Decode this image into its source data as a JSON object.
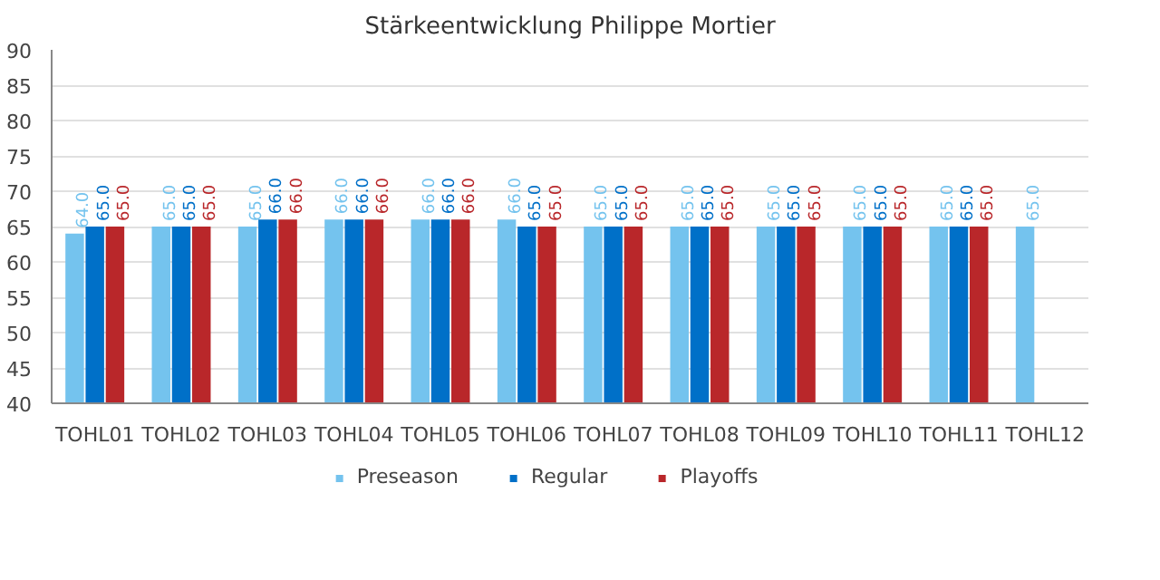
{
  "chart_data": {
    "type": "bar",
    "title": "Stärkeentwicklung Philippe Mortier",
    "categories": [
      "TOHL01",
      "TOHL02",
      "TOHL03",
      "TOHL04",
      "TOHL05",
      "TOHL06",
      "TOHL07",
      "TOHL08",
      "TOHL09",
      "TOHL10",
      "TOHL11",
      "TOHL12"
    ],
    "series": [
      {
        "name": "Preseason",
        "color": "#74c3ee",
        "values": [
          64,
          65,
          65,
          66,
          66,
          66,
          65,
          65,
          65,
          65,
          65,
          65
        ],
        "value_labels": [
          "64.0",
          "65.0",
          "65.0",
          "66.0",
          "66.0",
          "66.0",
          "65.0",
          "65.0",
          "65.0",
          "65.0",
          "65.0",
          "65.0"
        ]
      },
      {
        "name": "Regular",
        "color": "#0070c8",
        "values": [
          65,
          65,
          66,
          66,
          66,
          65,
          65,
          65,
          65,
          65,
          65,
          null
        ],
        "value_labels": [
          "65.0",
          "65.0",
          "66.0",
          "66.0",
          "66.0",
          "65.0",
          "65.0",
          "65.0",
          "65.0",
          "65.0",
          "65.0",
          null
        ]
      },
      {
        "name": "Playoffs",
        "color": "#b9272a",
        "values": [
          65,
          65,
          66,
          66,
          66,
          65,
          65,
          65,
          65,
          65,
          65,
          null
        ],
        "value_labels": [
          "65.0",
          "65.0",
          "66.0",
          "66.0",
          "66.0",
          "65.0",
          "65.0",
          "65.0",
          "65.0",
          "65.0",
          "65.0",
          null
        ]
      }
    ],
    "ylim": [
      40,
      90
    ],
    "yticks": [
      40,
      45,
      50,
      55,
      60,
      65,
      70,
      75,
      80,
      85,
      90
    ],
    "grid": "y",
    "legend": "bottom"
  }
}
